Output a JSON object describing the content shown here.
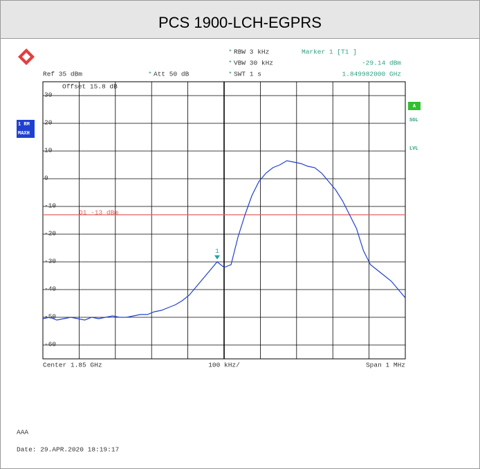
{
  "chart_data": {
    "type": "line",
    "title": "PCS 1900-LCH-EGPRS",
    "settings": {
      "rbw": "RBW 3 kHz",
      "vbw": "VBW 30 kHz",
      "swt": "SWT 1 s",
      "ref": "Ref 35 dBm",
      "att": "Att 50 dB",
      "offset": "Offset 15.8 dB"
    },
    "marker": {
      "title": "Marker 1 [T1 ]",
      "label": "1",
      "value": -29.14,
      "value_label": "-29.14 dBm",
      "frequency": "1.849982000 GHz"
    },
    "display_line": {
      "label": "D1 -13 dBm",
      "value": -13,
      "color": "#e06060"
    },
    "side_labels": [
      "1 RM",
      "MAXH",
      "A",
      "SGL",
      "LVL"
    ],
    "x_labels": {
      "center": "Center 1.85 GHz",
      "division": "100 kHz/",
      "span": "Span 1 MHz"
    },
    "ylim": [
      -65,
      35
    ],
    "yticks": [
      30,
      20,
      10,
      0,
      -10,
      -20,
      -30,
      -40,
      -50,
      -60
    ],
    "grid": true,
    "series": [
      {
        "name": "1 RM",
        "color": "#2040d0",
        "values": [
          -50.5,
          -50,
          -51,
          -50.5,
          -50,
          -50.5,
          -51,
          -50,
          -50.5,
          -50,
          -49.5,
          -50,
          -50,
          -49.5,
          -49,
          -49,
          -48,
          -47.5,
          -46.5,
          -45.5,
          -44,
          -42,
          -39,
          -36,
          -33,
          -30,
          -32,
          -31,
          -21,
          -13,
          -6,
          -1,
          2,
          4,
          5,
          6.5,
          6,
          5.5,
          4.5,
          4,
          2,
          -1,
          -4,
          -8,
          -13,
          -18,
          -26,
          -31,
          -33,
          -35,
          -37,
          -40,
          -43
        ]
      }
    ],
    "footer": {
      "note": "AAA",
      "date": "Date: 29.APR.2020  18:19:17"
    }
  }
}
